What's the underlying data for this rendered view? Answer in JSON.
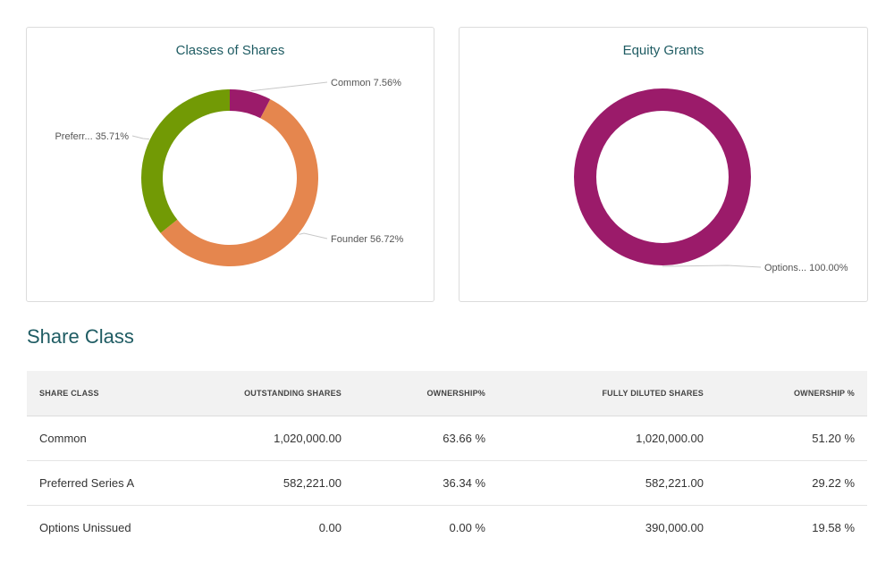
{
  "charts_titles": {
    "classes": "Classes of Shares",
    "grants": "Equity Grants"
  },
  "chart_data": [
    {
      "type": "pie",
      "title": "Classes of Shares",
      "donut": true,
      "slices": [
        {
          "label": "Common",
          "display_label": "Common 7.56%",
          "value": 7.56,
          "color": "#9b1b6a"
        },
        {
          "label": "Founder",
          "display_label": "Founder 56.72%",
          "value": 56.72,
          "color": "#e5864e"
        },
        {
          "label": "Preferr...",
          "display_label": "Preferr... 35.71%",
          "value": 35.71,
          "color": "#729a05"
        }
      ]
    },
    {
      "type": "pie",
      "title": "Equity Grants",
      "donut": true,
      "slices": [
        {
          "label": "Options...",
          "display_label": "Options... 100.00%",
          "value": 100.0,
          "color": "#9b1b6a"
        }
      ]
    }
  ],
  "section": {
    "title": "Share Class"
  },
  "table": {
    "headers": [
      "SHARE CLASS",
      "OUTSTANDING SHARES",
      "OWNERSHIP%",
      "FULLY DILUTED SHARES",
      "OWNERSHIP %"
    ],
    "rows": [
      [
        "Common",
        "1,020,000.00",
        "63.66 %",
        "1,020,000.00",
        "51.20 %"
      ],
      [
        "Preferred Series A",
        "582,221.00",
        "36.34 %",
        "582,221.00",
        "29.22 %"
      ],
      [
        "Options Unissued",
        "0.00",
        "0.00 %",
        "390,000.00",
        "19.58 %"
      ]
    ]
  }
}
